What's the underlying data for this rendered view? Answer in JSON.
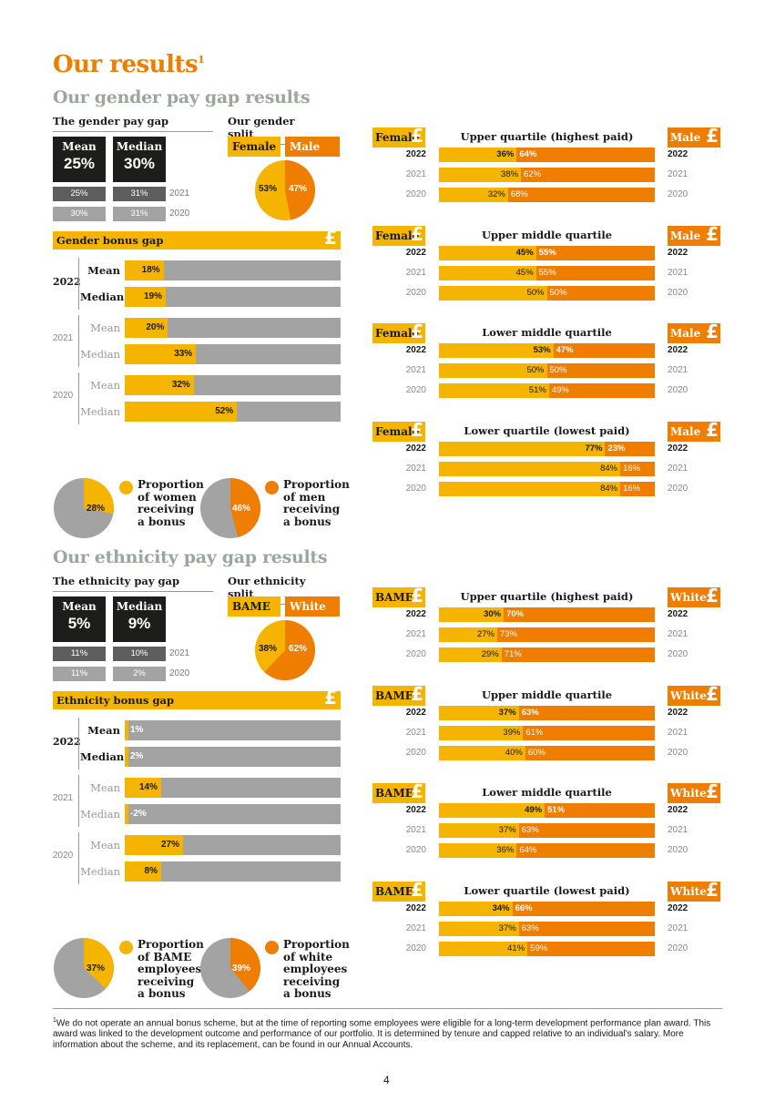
{
  "title": "Our results",
  "title_sup": "1",
  "colors": {
    "yellow": "#f5b400",
    "orange": "#ee7d00",
    "dark": "#1d1d1b",
    "grey": "#a3a3a3",
    "heading_grey": "#9ba79b"
  },
  "gender": {
    "heading": "Our gender pay gap results",
    "paygap_title": "The gender pay gap",
    "mean_label": "Mean",
    "mean_value": "25%",
    "median_label": "Median",
    "median_value": "30%",
    "history": [
      {
        "year": "2021",
        "mean": "25%",
        "median": "31%"
      },
      {
        "year": "2020",
        "mean": "30%",
        "median": "31%"
      }
    ],
    "split_title": "Our gender split",
    "split_female_label": "Female",
    "split_male_label": "Male",
    "split_female": "53%",
    "split_male": "47%",
    "split_female_pct": 53,
    "bonus_title": "Gender bonus gap",
    "bonus": [
      {
        "year": "2022",
        "rows": [
          {
            "label": "Mean",
            "value": "18%",
            "pct": 18
          },
          {
            "label": "Median",
            "value": "19%",
            "pct": 19
          }
        ]
      },
      {
        "year": "2021",
        "rows": [
          {
            "label": "Mean",
            "value": "20%",
            "pct": 20
          },
          {
            "label": "Median",
            "value": "33%",
            "pct": 33
          }
        ]
      },
      {
        "year": "2020",
        "rows": [
          {
            "label": "Mean",
            "value": "32%",
            "pct": 32
          },
          {
            "label": "Median",
            "value": "52%",
            "pct": 52
          }
        ]
      }
    ],
    "prop_a": {
      "value": "28%",
      "pct": 28,
      "label": [
        "Proportion",
        "of women",
        "receiving",
        "a bonus"
      ]
    },
    "prop_b": {
      "value": "46%",
      "pct": 46,
      "label": [
        "Proportion",
        "of men",
        "receiving",
        "a bonus"
      ]
    },
    "quartile_left_label": "Female",
    "quartile_right_label": "Male",
    "quartiles": [
      {
        "title": "Upper quartile (highest paid)",
        "rows": [
          {
            "year": "2022",
            "a": "36%",
            "b": "64%",
            "pct": 36
          },
          {
            "year": "2021",
            "a": "38%",
            "b": "62%",
            "pct": 38
          },
          {
            "year": "2020",
            "a": "32%",
            "b": "68%",
            "pct": 32
          }
        ]
      },
      {
        "title": "Upper middle quartile",
        "rows": [
          {
            "year": "2022",
            "a": "45%",
            "b": "55%",
            "pct": 45
          },
          {
            "year": "2021",
            "a": "45%",
            "b": "55%",
            "pct": 45
          },
          {
            "year": "2020",
            "a": "50%",
            "b": "50%",
            "pct": 50
          }
        ]
      },
      {
        "title": "Lower middle quartile",
        "rows": [
          {
            "year": "2022",
            "a": "53%",
            "b": "47%",
            "pct": 53
          },
          {
            "year": "2021",
            "a": "50%",
            "b": "50%",
            "pct": 50
          },
          {
            "year": "2020",
            "a": "51%",
            "b": "49%",
            "pct": 51
          }
        ]
      },
      {
        "title": "Lower quartile (lowest paid)",
        "rows": [
          {
            "year": "2022",
            "a": "77%",
            "b": "23%",
            "pct": 77
          },
          {
            "year": "2021",
            "a": "84%",
            "b": "16%",
            "pct": 84
          },
          {
            "year": "2020",
            "a": "84%",
            "b": "16%",
            "pct": 84
          }
        ]
      }
    ]
  },
  "ethnicity": {
    "heading": "Our ethnicity pay gap results",
    "paygap_title": "The ethnicity pay gap",
    "mean_label": "Mean",
    "mean_value": "5%",
    "median_label": "Median",
    "median_value": "9%",
    "history": [
      {
        "year": "2021",
        "mean": "11%",
        "median": "10%"
      },
      {
        "year": "2020",
        "mean": "11%",
        "median": "2%"
      }
    ],
    "split_title": "Our ethnicity split",
    "split_female_label": "BAME",
    "split_male_label": "White",
    "split_female": "38%",
    "split_male": "62%",
    "split_female_pct": 38,
    "bonus_title": "Ethnicity bonus gap",
    "bonus": [
      {
        "year": "2022",
        "rows": [
          {
            "label": "Mean",
            "value": "1%",
            "pct": 1
          },
          {
            "label": "Median",
            "value": "2%",
            "pct": 2
          }
        ]
      },
      {
        "year": "2021",
        "rows": [
          {
            "label": "Mean",
            "value": "14%",
            "pct": 14
          },
          {
            "label": "Median",
            "value": "-2%",
            "pct": -2
          }
        ]
      },
      {
        "year": "2020",
        "rows": [
          {
            "label": "Mean",
            "value": "27%",
            "pct": 27
          },
          {
            "label": "Median",
            "value": "8%",
            "pct": 8
          }
        ]
      }
    ],
    "prop_a": {
      "value": "37%",
      "pct": 37,
      "label": [
        "Proportion",
        "of BAME",
        "employees",
        "receiving",
        "a bonus"
      ]
    },
    "prop_b": {
      "value": "39%",
      "pct": 39,
      "label": [
        "Proportion",
        "of white",
        "employees",
        "receiving",
        "a bonus"
      ]
    },
    "quartile_left_label": "BAME",
    "quartile_right_label": "White",
    "quartiles": [
      {
        "title": "Upper quartile (highest paid)",
        "rows": [
          {
            "year": "2022",
            "a": "30%",
            "b": "70%",
            "pct": 30
          },
          {
            "year": "2021",
            "a": "27%",
            "b": "73%",
            "pct": 27
          },
          {
            "year": "2020",
            "a": "29%",
            "b": "71%",
            "pct": 29
          }
        ]
      },
      {
        "title": "Upper middle quartile",
        "rows": [
          {
            "year": "2022",
            "a": "37%",
            "b": "63%",
            "pct": 37
          },
          {
            "year": "2021",
            "a": "39%",
            "b": "61%",
            "pct": 39
          },
          {
            "year": "2020",
            "a": "40%",
            "b": "60%",
            "pct": 40
          }
        ]
      },
      {
        "title": "Lower middle quartile",
        "rows": [
          {
            "year": "2022",
            "a": "49%",
            "b": "51%",
            "pct": 49
          },
          {
            "year": "2021",
            "a": "37%",
            "b": "63%",
            "pct": 37
          },
          {
            "year": "2020",
            "a": "36%",
            "b": "64%",
            "pct": 36
          }
        ]
      },
      {
        "title": "Lower quartile (lowest paid)",
        "rows": [
          {
            "year": "2022",
            "a": "34%",
            "b": "66%",
            "pct": 34
          },
          {
            "year": "2021",
            "a": "37%",
            "b": "63%",
            "pct": 37
          },
          {
            "year": "2020",
            "a": "41%",
            "b": "59%",
            "pct": 41
          }
        ]
      }
    ]
  },
  "pound_icon": "£",
  "footnote_mark": "1",
  "footnote": "We do not operate an annual bonus scheme, but at the time of reporting some employees were eligible for a long-term development performance plan award. This award was linked to the development outcome and performance of our portfolio. It is determined by tenure and capped relative to an individual's salary. More information about the scheme, and its replacement, can be found in our Annual Accounts.",
  "page_number": "4"
}
